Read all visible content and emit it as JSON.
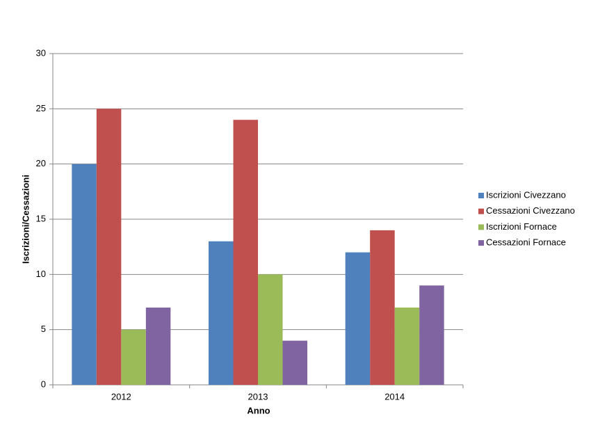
{
  "chart_data": {
    "type": "bar",
    "categories": [
      "2012",
      "2013",
      "2014"
    ],
    "series": [
      {
        "name": "Iscrizioni Civezzano",
        "color": "#4f81bd",
        "values": [
          20,
          13,
          12
        ]
      },
      {
        "name": "Cessazioni Civezzano",
        "color": "#c0504d",
        "values": [
          25,
          24,
          14
        ]
      },
      {
        "name": "Iscrizioni Fornace",
        "color": "#9bbb59",
        "values": [
          5,
          10,
          7
        ]
      },
      {
        "name": "Cessazioni Fornace",
        "color": "#8064a2",
        "values": [
          7,
          4,
          9
        ]
      }
    ],
    "x_label": "Anno",
    "y_label": "Iscrizioni/Cessazioni",
    "ylim": [
      0,
      30
    ],
    "yticks": [
      0,
      5,
      10,
      15,
      20,
      25,
      30
    ],
    "grid": true,
    "legend": "right"
  }
}
